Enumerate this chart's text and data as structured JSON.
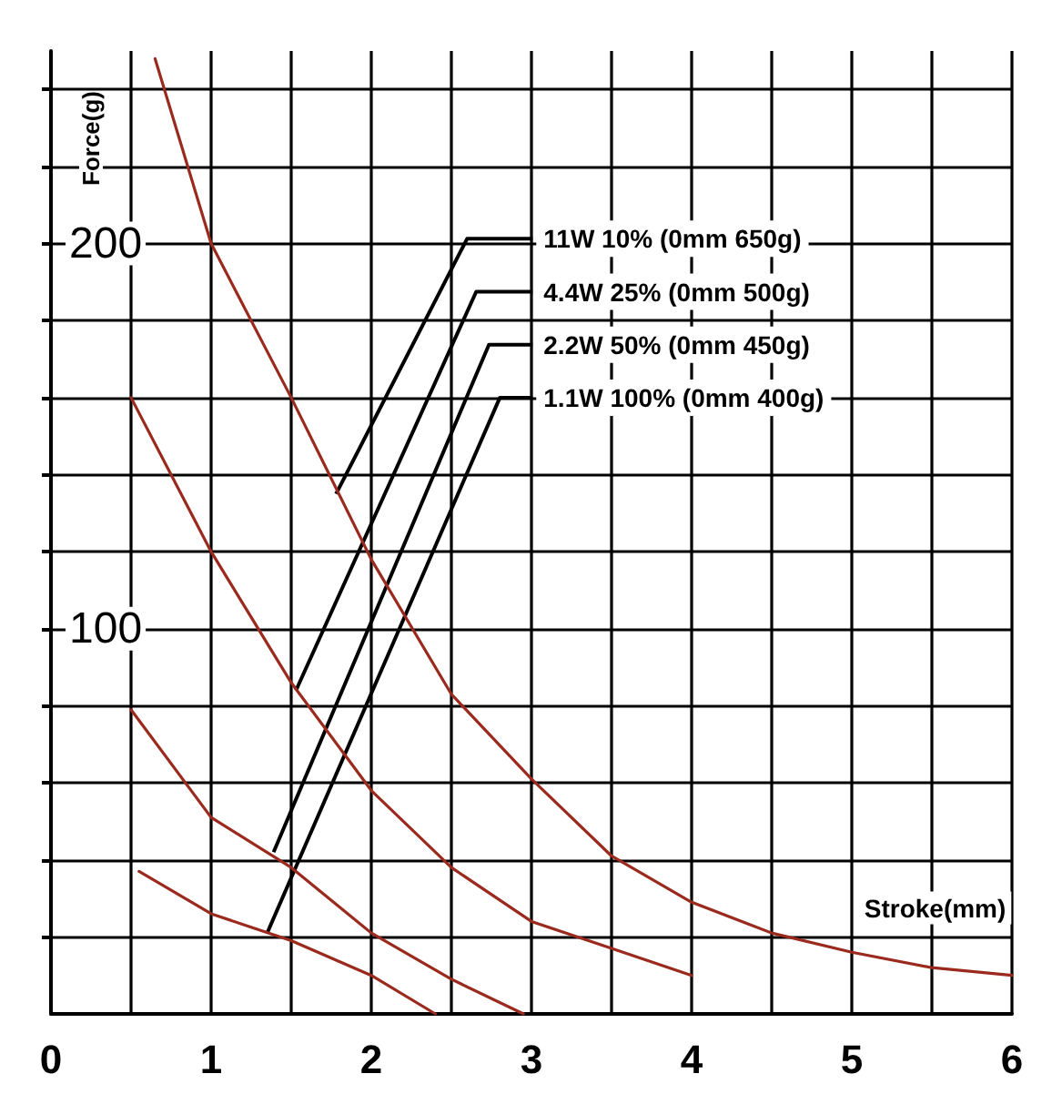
{
  "chart_data": {
    "type": "line",
    "xlabel": "Stroke(mm)",
    "ylabel": "Force(g)",
    "xlim": [
      0,
      6
    ],
    "ylim": [
      0,
      250
    ],
    "xticks": [
      0,
      {
        "value": 0.5,
        "label": null
      },
      1,
      {
        "value": 1.5,
        "label": null
      },
      2,
      {
        "value": 2.5,
        "label": null
      },
      3,
      {
        "value": 3.5,
        "label": null
      },
      4,
      {
        "value": 4.5,
        "label": null
      },
      5,
      {
        "value": 5.5,
        "label": null
      },
      6
    ],
    "yticks": [
      {
        "value": 20,
        "label": null
      },
      {
        "value": 40,
        "label": null
      },
      {
        "value": 60,
        "label": null
      },
      {
        "value": 80,
        "label": null
      },
      100,
      {
        "value": 120,
        "label": null
      },
      {
        "value": 140,
        "label": null
      },
      {
        "value": 160,
        "label": null
      },
      {
        "value": 180,
        "label": null
      },
      200,
      {
        "value": 220,
        "label": null
      },
      {
        "value": 240,
        "label": null
      }
    ],
    "grid": true,
    "marker": "none",
    "line_style": "solid",
    "series": [
      {
        "color": "#9b2a1e",
        "x": [
          0.65,
          1,
          1.5,
          2,
          2.5,
          3,
          3.5,
          4,
          4.5,
          5,
          5.5,
          6
        ],
        "values": [
          248,
          200,
          160,
          118,
          83,
          61,
          41,
          29,
          21,
          16,
          12,
          10
        ]
      },
      {
        "color": "#9b2a1e",
        "x": [
          0.5,
          1,
          1.5,
          2,
          2.5,
          3,
          3.5,
          4
        ],
        "values": [
          160,
          120,
          86,
          58,
          38,
          24,
          17,
          10
        ]
      },
      {
        "color": "#9b2a1e",
        "x": [
          0.5,
          1,
          1.5,
          2,
          2.5,
          2.95
        ],
        "values": [
          79,
          51,
          38,
          21,
          9,
          0
        ]
      },
      {
        "color": "#9b2a1e",
        "x": [
          0.55,
          1,
          1.5,
          2,
          2.4
        ],
        "values": [
          37,
          26,
          19,
          10,
          0
        ]
      }
    ],
    "annotations": [
      {
        "text": "11W 10% (0mm 650g)",
        "x": 1.78,
        "y": 135
      },
      {
        "text": "4.4W 25% (0mm 500g)",
        "x": 1.53,
        "y": 84
      },
      {
        "text": "2.2W 50% (0mm 450g)",
        "x": 1.39,
        "y": 42
      },
      {
        "text": "1.1W 100% (0mm 400g)",
        "x": 1.35,
        "y": 21
      }
    ]
  }
}
